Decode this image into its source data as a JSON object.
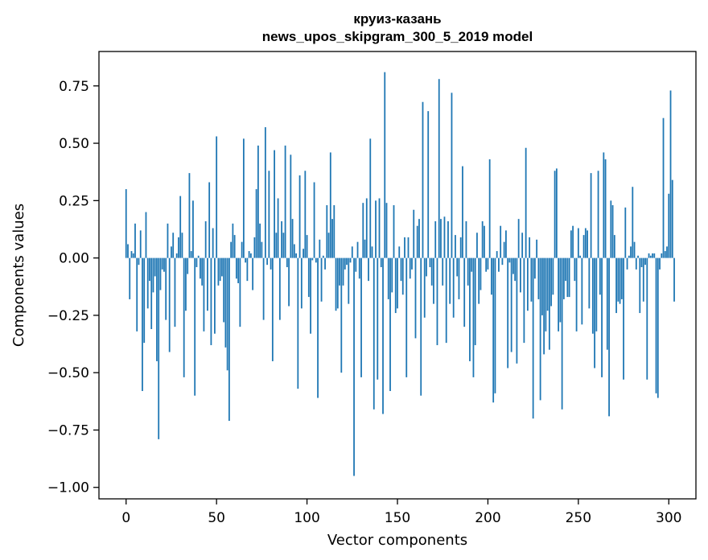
{
  "chart_data": {
    "type": "bar",
    "title_line1": "круиз-казань",
    "title_line2": "news_upos_skipgram_300_5_2019 model",
    "xlabel": "Vector components",
    "ylabel": "Components values",
    "xlim": [
      -15,
      315
    ],
    "ylim": [
      -1.05,
      0.9
    ],
    "xticks": [
      0,
      50,
      100,
      150,
      200,
      250,
      300
    ],
    "xtick_labels": [
      "0",
      "50",
      "100",
      "150",
      "200",
      "250",
      "300"
    ],
    "yticks": [
      -1.0,
      -0.75,
      -0.5,
      -0.25,
      0.0,
      0.25,
      0.5,
      0.75
    ],
    "ytick_labels": [
      "−1.00",
      "−0.75",
      "−0.50",
      "−0.25",
      "0.00",
      "0.25",
      "0.50",
      "0.75"
    ],
    "bar_color": "#1f77b4",
    "values": [
      0.3,
      0.06,
      -0.18,
      0.03,
      0.02,
      0.15,
      -0.32,
      -0.03,
      0.12,
      -0.58,
      -0.37,
      0.2,
      -0.22,
      -0.1,
      -0.31,
      -0.15,
      -0.08,
      -0.45,
      -0.79,
      -0.14,
      -0.05,
      -0.06,
      -0.27,
      0.15,
      -0.41,
      0.05,
      0.11,
      -0.3,
      0.02,
      0.09,
      0.27,
      0.11,
      -0.52,
      -0.23,
      -0.07,
      0.37,
      0.03,
      0.25,
      -0.6,
      -0.04,
      0.01,
      -0.09,
      -0.12,
      -0.32,
      0.16,
      -0.23,
      0.33,
      -0.38,
      0.13,
      -0.33,
      0.53,
      -0.12,
      -0.1,
      -0.08,
      -0.28,
      -0.39,
      -0.49,
      -0.71,
      0.07,
      0.15,
      0.1,
      -0.09,
      -0.11,
      -0.3,
      0.07,
      0.52,
      -0.02,
      -0.1,
      0.03,
      0.02,
      -0.14,
      0.09,
      0.3,
      0.49,
      0.15,
      0.07,
      -0.27,
      0.57,
      -0.03,
      0.38,
      -0.05,
      -0.45,
      0.47,
      0.11,
      0.26,
      -0.27,
      0.16,
      0.11,
      0.49,
      -0.04,
      -0.21,
      0.45,
      0.17,
      0.06,
      0.02,
      -0.57,
      0.36,
      -0.22,
      0.04,
      0.38,
      0.1,
      -0.17,
      -0.33,
      -0.01,
      0.33,
      -0.02,
      -0.61,
      0.08,
      -0.19,
      0.01,
      -0.05,
      0.23,
      0.11,
      0.46,
      0.17,
      0.23,
      -0.23,
      -0.22,
      -0.12,
      -0.5,
      -0.12,
      -0.05,
      -0.03,
      -0.2,
      -0.02,
      0.05,
      -0.95,
      -0.06,
      0.07,
      -0.09,
      -0.52,
      0.24,
      0.08,
      0.26,
      -0.1,
      0.52,
      0.05,
      -0.66,
      0.25,
      -0.53,
      0.26,
      -0.04,
      -0.68,
      0.81,
      0.24,
      -0.18,
      -0.58,
      -0.15,
      0.23,
      -0.24,
      -0.22,
      0.05,
      -0.1,
      -0.16,
      0.09,
      -0.52,
      0.09,
      -0.09,
      -0.05,
      0.21,
      -0.35,
      0.14,
      0.17,
      -0.6,
      0.68,
      -0.26,
      -0.08,
      0.64,
      -0.04,
      -0.12,
      -0.2,
      0.16,
      -0.38,
      0.78,
      0.17,
      -0.12,
      0.18,
      -0.37,
      0.16,
      -0.2,
      0.72,
      -0.26,
      0.1,
      -0.08,
      -0.18,
      0.09,
      0.4,
      -0.3,
      0.16,
      -0.12,
      -0.45,
      -0.06,
      -0.52,
      -0.38,
      0.11,
      -0.2,
      -0.14,
      0.16,
      0.14,
      -0.06,
      -0.05,
      0.43,
      -0.16,
      -0.63,
      -0.59,
      0.03,
      -0.06,
      0.14,
      -0.03,
      0.07,
      0.12,
      -0.48,
      -0.02,
      -0.41,
      -0.07,
      -0.1,
      -0.46,
      0.17,
      -0.15,
      0.11,
      -0.37,
      0.48,
      -0.23,
      0.09,
      -0.19,
      -0.7,
      -0.09,
      0.08,
      -0.18,
      -0.62,
      -0.25,
      -0.42,
      -0.32,
      -0.23,
      -0.4,
      -0.21,
      -0.16,
      0.38,
      0.39,
      -0.32,
      -0.28,
      -0.66,
      -0.18,
      -0.1,
      -0.17,
      -0.17,
      0.12,
      0.14,
      -0.1,
      -0.32,
      0.13,
      0.01,
      -0.29,
      0.1,
      0.13,
      0.12,
      -0.22,
      0.37,
      -0.33,
      -0.48,
      -0.32,
      0.38,
      -0.16,
      -0.52,
      0.46,
      0.43,
      -0.4,
      -0.69,
      0.25,
      0.23,
      0.1,
      -0.24,
      -0.19,
      -0.2,
      -0.18,
      -0.53,
      0.22,
      -0.05,
      0.01,
      0.05,
      0.31,
      0.07,
      -0.05,
      0.01,
      -0.24,
      -0.04,
      -0.19,
      -0.03,
      -0.53,
      0.02,
      0.01,
      0.02,
      0.02,
      -0.59,
      -0.61,
      -0.05,
      0.02,
      0.61,
      0.03,
      0.05,
      0.28,
      0.73,
      0.34,
      -0.19
    ]
  }
}
